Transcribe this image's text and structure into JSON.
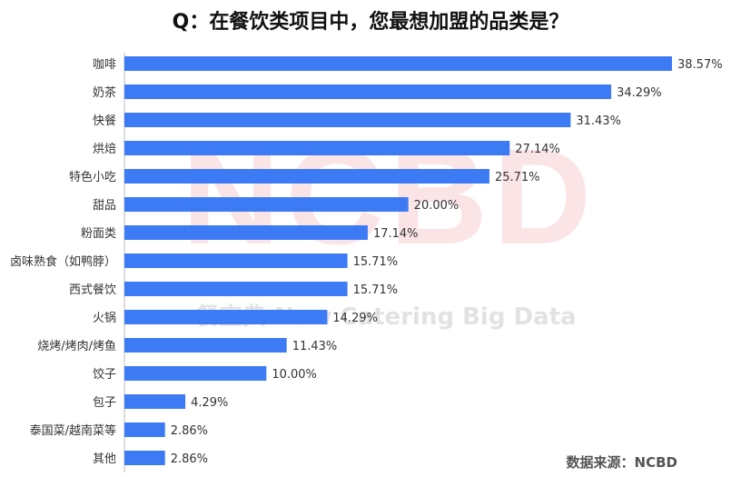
{
  "title": "Q：在餐饮类项目中，您最想加盟的品类是？",
  "source": "数据来源：NCBD",
  "watermark": {
    "logo": "NCBD",
    "text": "餐宝典 New Catering Big Data"
  },
  "colors": {
    "bar": "#3d7bf5",
    "label": "#333333",
    "axis": "#bbbbbb"
  },
  "chart_data": {
    "type": "bar",
    "orientation": "horizontal",
    "categories": [
      "咖啡",
      "奶茶",
      "快餐",
      "烘焙",
      "特色小吃",
      "甜品",
      "粉面类",
      "卤味熟食（如鸭脖）",
      "西式餐饮",
      "火锅",
      "烧烤/烤肉/烤鱼",
      "饺子",
      "包子",
      "泰国菜/越南菜等",
      "其他"
    ],
    "values": [
      38.57,
      34.29,
      31.43,
      27.14,
      25.71,
      20.0,
      17.14,
      15.71,
      15.71,
      14.29,
      11.43,
      10.0,
      4.29,
      2.86,
      2.86
    ],
    "value_labels": [
      "38.57%",
      "34.29%",
      "31.43%",
      "27.14%",
      "25.71%",
      "20.00%",
      "17.14%",
      "15.71%",
      "15.71%",
      "14.29%",
      "11.43%",
      "10.00%",
      "4.29%",
      "2.86%",
      "2.86%"
    ],
    "xlim": [
      0,
      40
    ],
    "grid": false,
    "legend": "none"
  }
}
